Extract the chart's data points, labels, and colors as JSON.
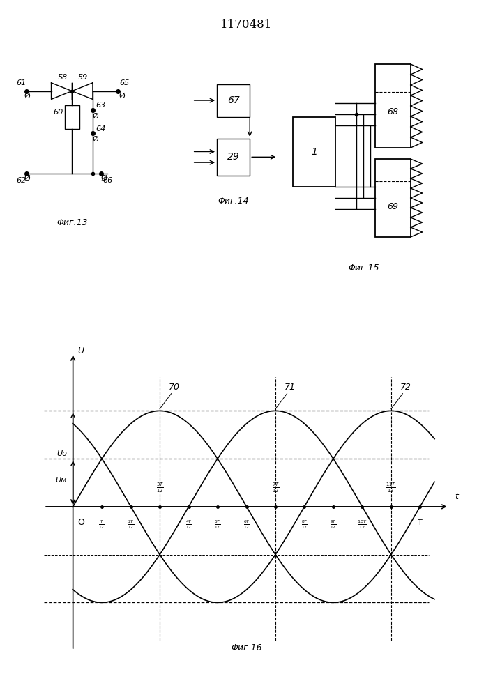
{
  "title": "1170481",
  "bg_color": "#ffffff",
  "fig13_label": "Φиг.13",
  "fig14_label": "Φиг.14",
  "fig15_label": "Φиг.15",
  "fig16_label": "Φиг.16",
  "Vo": 1.0,
  "Vm": 0.5,
  "T": 12.0
}
